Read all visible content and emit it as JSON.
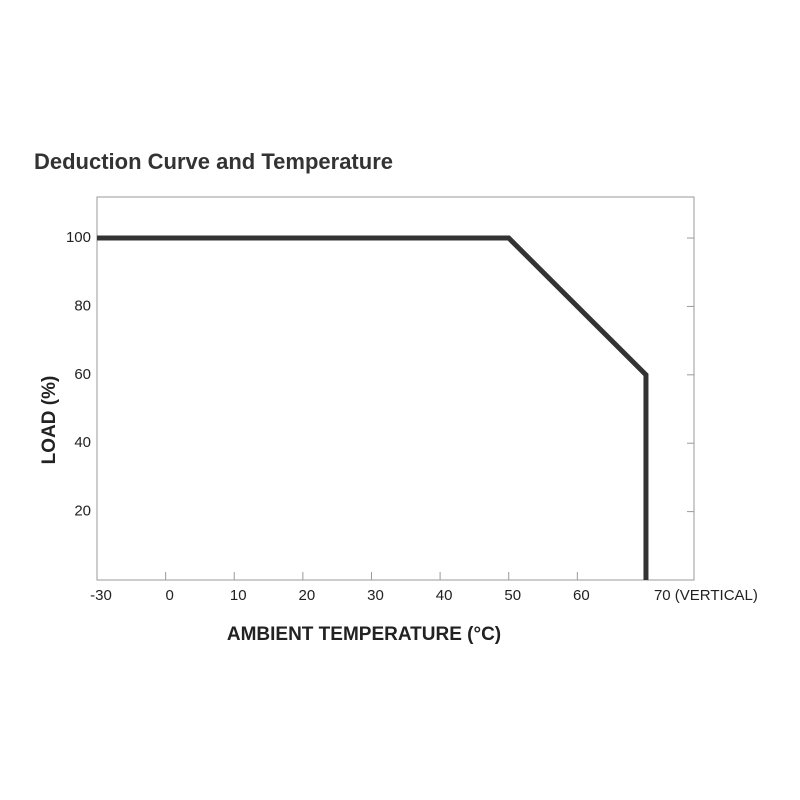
{
  "chart_data": {
    "type": "line",
    "title": "Deduction Curve and Temperature",
    "x_label": "AMBIENT TEMPERATURE (°C)",
    "y_label": "LOAD (%)",
    "series": [
      {
        "x": [
          -30,
          50,
          70,
          70
        ],
        "values": [
          100,
          100,
          60,
          0
        ],
        "color": "#333333"
      }
    ],
    "xlim": [
      -30,
      77
    ],
    "xticks": [
      -30,
      0,
      10,
      20,
      30,
      40,
      50,
      60,
      {
        "value": 70,
        "label": "70 (VERTICAL)"
      }
    ],
    "ylim": [
      0,
      112
    ],
    "yticks": [
      20,
      40,
      60,
      80,
      100
    ]
  }
}
